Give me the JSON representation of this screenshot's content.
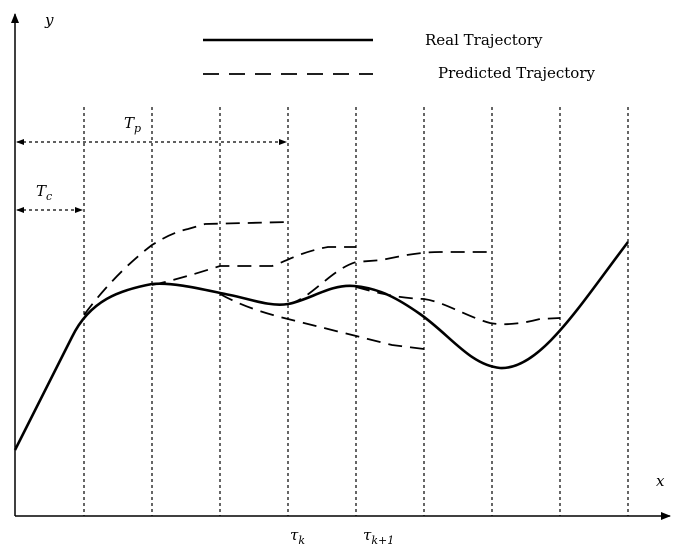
{
  "axes": {
    "x_label": "x",
    "y_label": "y"
  },
  "legend": {
    "real": "Real Trajectory",
    "predicted": "Predicted Trajectory"
  },
  "horizons": {
    "prediction": {
      "symbol": "T",
      "subscript": "p"
    },
    "control": {
      "symbol": "T",
      "subscript": "c"
    }
  },
  "ticks": {
    "tau_k": {
      "symbol": "τ",
      "subscript": "k"
    },
    "tau_k1": {
      "symbol": "τ",
      "subscript": "k+1"
    }
  },
  "colors": {
    "line": "#000000",
    "background": "#ffffff"
  }
}
